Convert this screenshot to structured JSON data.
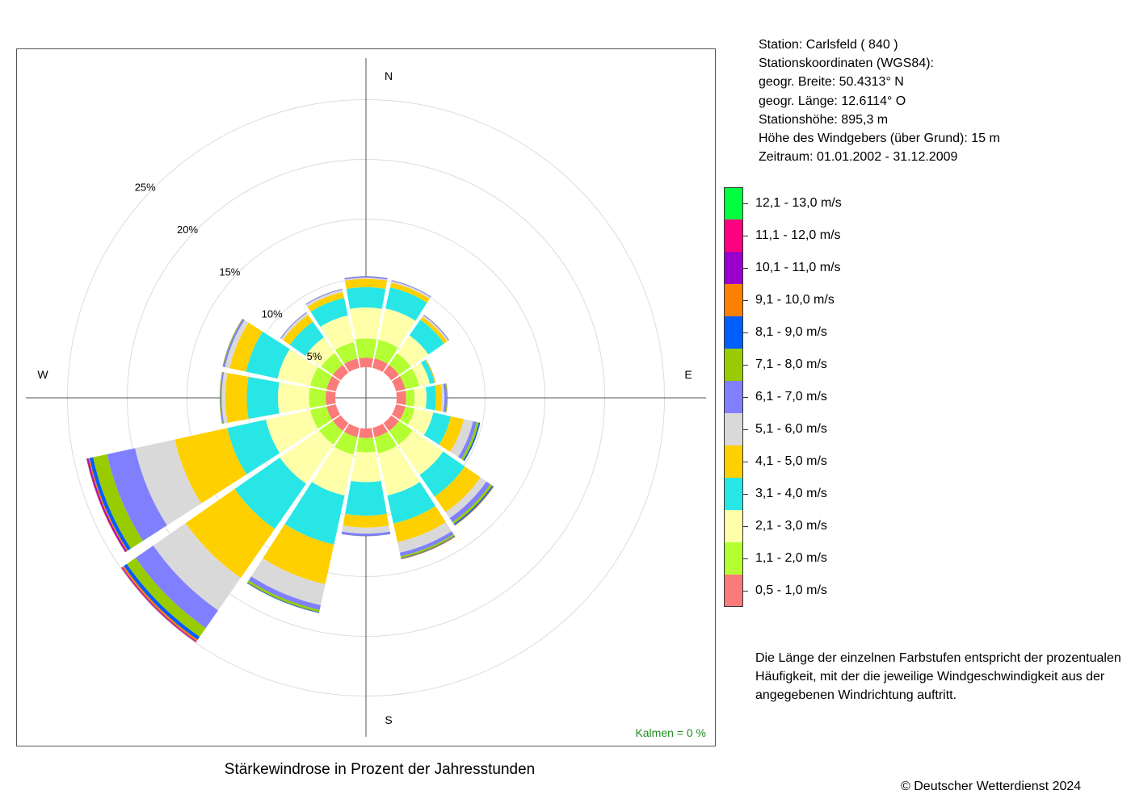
{
  "caption": "Stärkewindrose in Prozent der Jahresstunden",
  "station": {
    "lines": [
      "Station:  Carlsfeld  ( 840 )",
      "Stationskoordinaten (WGS84):",
      "geogr. Breite: 50.4313° N",
      "geogr. Länge: 12.6114° O",
      "Stationshöhe: 895,3 m",
      "Höhe des Windgebers (über Grund): 15 m",
      "Zeitraum: 01.01.2002 - 31.12.2009"
    ]
  },
  "legend_note": "Die Länge der einzelnen Farbstufen entspricht der prozentualen Häufigkeit, mit der die jeweilige Windgeschwindigkeit aus der angegebenen Windrichtung auftritt.",
  "copyright": "© Deutscher Wetterdienst  2024",
  "chart_data": {
    "type": "polar-stacked-bar",
    "title": "Stärkewindrose in Prozent der Jahresstunden",
    "directions": [
      "N",
      "NNE",
      "NE",
      "ENE",
      "E",
      "ESE",
      "SE",
      "SSE",
      "S",
      "SSW",
      "SW",
      "WSW",
      "W",
      "WNW",
      "NW",
      "NNW"
    ],
    "direction_angles_deg": [
      0,
      22.5,
      45,
      67.5,
      90,
      112.5,
      135,
      157.5,
      180,
      202.5,
      225,
      247.5,
      270,
      292.5,
      315,
      337.5
    ],
    "compass_labels": [
      "N",
      "E",
      "S",
      "W"
    ],
    "ring_labels": [
      "5%",
      "10%",
      "15%",
      "20%",
      "25%"
    ],
    "ring_values": [
      5,
      10,
      15,
      20,
      25
    ],
    "radial_unit": "%",
    "inner_radius_percent": 2.6,
    "calms_label": "Kalmen  =  0 %",
    "calms_percent": 0,
    "speed_classes": [
      {
        "name": "0,5 - 1,0 m/s",
        "color": "#fb7a7a"
      },
      {
        "name": "1,1 - 2,0 m/s",
        "color": "#b3ff33"
      },
      {
        "name": "2,1 - 3,0 m/s",
        "color": "#ffffaa"
      },
      {
        "name": "3,1 - 4,0 m/s",
        "color": "#29e6e6"
      },
      {
        "name": "4,1 - 5,0 m/s",
        "color": "#ffd000"
      },
      {
        "name": "5,1 - 6,0 m/s",
        "color": "#d9d9d9"
      },
      {
        "name": "6,1 - 7,0 m/s",
        "color": "#8080ff"
      },
      {
        "name": "7,1 - 8,0 m/s",
        "color": "#99cc00"
      },
      {
        "name": "8,1 - 9,0 m/s",
        "color": "#005eff"
      },
      {
        "name": "9,1 - 10,0 m/s",
        "color": "#ff8000"
      },
      {
        "name": "10,1 - 11,0 m/s",
        "color": "#9900cc"
      },
      {
        "name": "11,1 - 12,0 m/s",
        "color": "#ff0080"
      },
      {
        "name": "12,1 - 13,0 m/s",
        "color": "#00ff40"
      }
    ],
    "series": [
      {
        "direction": "N",
        "values": [
          0.8,
          1.6,
          2.6,
          1.7,
          0.7,
          0.1,
          0.1,
          0,
          0,
          0,
          0,
          0,
          0
        ]
      },
      {
        "direction": "NNE",
        "values": [
          0.8,
          1.6,
          2.7,
          1.8,
          0.4,
          0.15,
          0.05,
          0,
          0,
          0,
          0,
          0,
          0
        ]
      },
      {
        "direction": "NE",
        "values": [
          0.8,
          1.2,
          1.8,
          1.6,
          0.3,
          0.15,
          0.05,
          0,
          0,
          0,
          0,
          0,
          0
        ]
      },
      {
        "direction": "ENE",
        "values": [
          0.8,
          1.2,
          0.9,
          0.4,
          0.07,
          0,
          0,
          0,
          0,
          0,
          0,
          0,
          0
        ]
      },
      {
        "direction": "E",
        "values": [
          0.8,
          0.7,
          1.0,
          0.8,
          0.5,
          0.2,
          0.2,
          0.05,
          0,
          0,
          0,
          0,
          0
        ]
      },
      {
        "direction": "ESE",
        "values": [
          0.8,
          0.8,
          1.6,
          1.5,
          1.1,
          0.8,
          0.3,
          0.2,
          0.1,
          0,
          0,
          0,
          0
        ]
      },
      {
        "direction": "SE",
        "values": [
          0.8,
          1.4,
          3.1,
          2.2,
          1.6,
          0.6,
          0.4,
          0.2,
          0.1,
          0.05,
          0,
          0,
          0
        ]
      },
      {
        "direction": "SSE",
        "values": [
          0.8,
          1.4,
          3.6,
          2.4,
          1.6,
          0.9,
          0.3,
          0.15,
          0.05,
          0.05,
          0,
          0,
          0
        ]
      },
      {
        "direction": "S",
        "values": [
          0.8,
          1.2,
          2.5,
          2.8,
          1.0,
          0.5,
          0.2,
          0,
          0,
          0,
          0,
          0,
          0
        ]
      },
      {
        "direction": "SSW",
        "values": [
          0.8,
          1.5,
          3.5,
          4.2,
          3.4,
          1.8,
          0.4,
          0.2,
          0.05,
          0,
          0,
          0,
          0
        ]
      },
      {
        "direction": "SW",
        "values": [
          0.8,
          1.4,
          4.0,
          4.6,
          5.0,
          3.3,
          1.8,
          0.9,
          0.3,
          0.15,
          0.05,
          0.05,
          0
        ]
      },
      {
        "direction": "WSW",
        "values": [
          0.8,
          1.4,
          3.8,
          3.3,
          4.5,
          3.4,
          2.4,
          1.2,
          0.3,
          0.1,
          0.1,
          0.05,
          0
        ]
      },
      {
        "direction": "W",
        "values": [
          0.8,
          1.4,
          2.6,
          2.6,
          1.8,
          0.3,
          0.1,
          0.05,
          0,
          0,
          0,
          0,
          0
        ]
      },
      {
        "direction": "WNW",
        "values": [
          0.8,
          1.4,
          2.8,
          2.7,
          1.4,
          0.4,
          0.15,
          0.05,
          0,
          0,
          0,
          0,
          0
        ]
      },
      {
        "direction": "NW",
        "values": [
          0.8,
          1.2,
          1.6,
          1.6,
          0.7,
          0.2,
          0.05,
          0,
          0,
          0,
          0,
          0,
          0
        ]
      },
      {
        "direction": "NNW",
        "values": [
          0.8,
          1.4,
          2.3,
          1.5,
          0.5,
          0.2,
          0.05,
          0,
          0,
          0,
          0,
          0,
          0
        ]
      }
    ],
    "colors": {
      "axis": "#555555",
      "grid": "#dcdcdc",
      "calms_text": "#228b22",
      "frame": "#555555"
    }
  }
}
